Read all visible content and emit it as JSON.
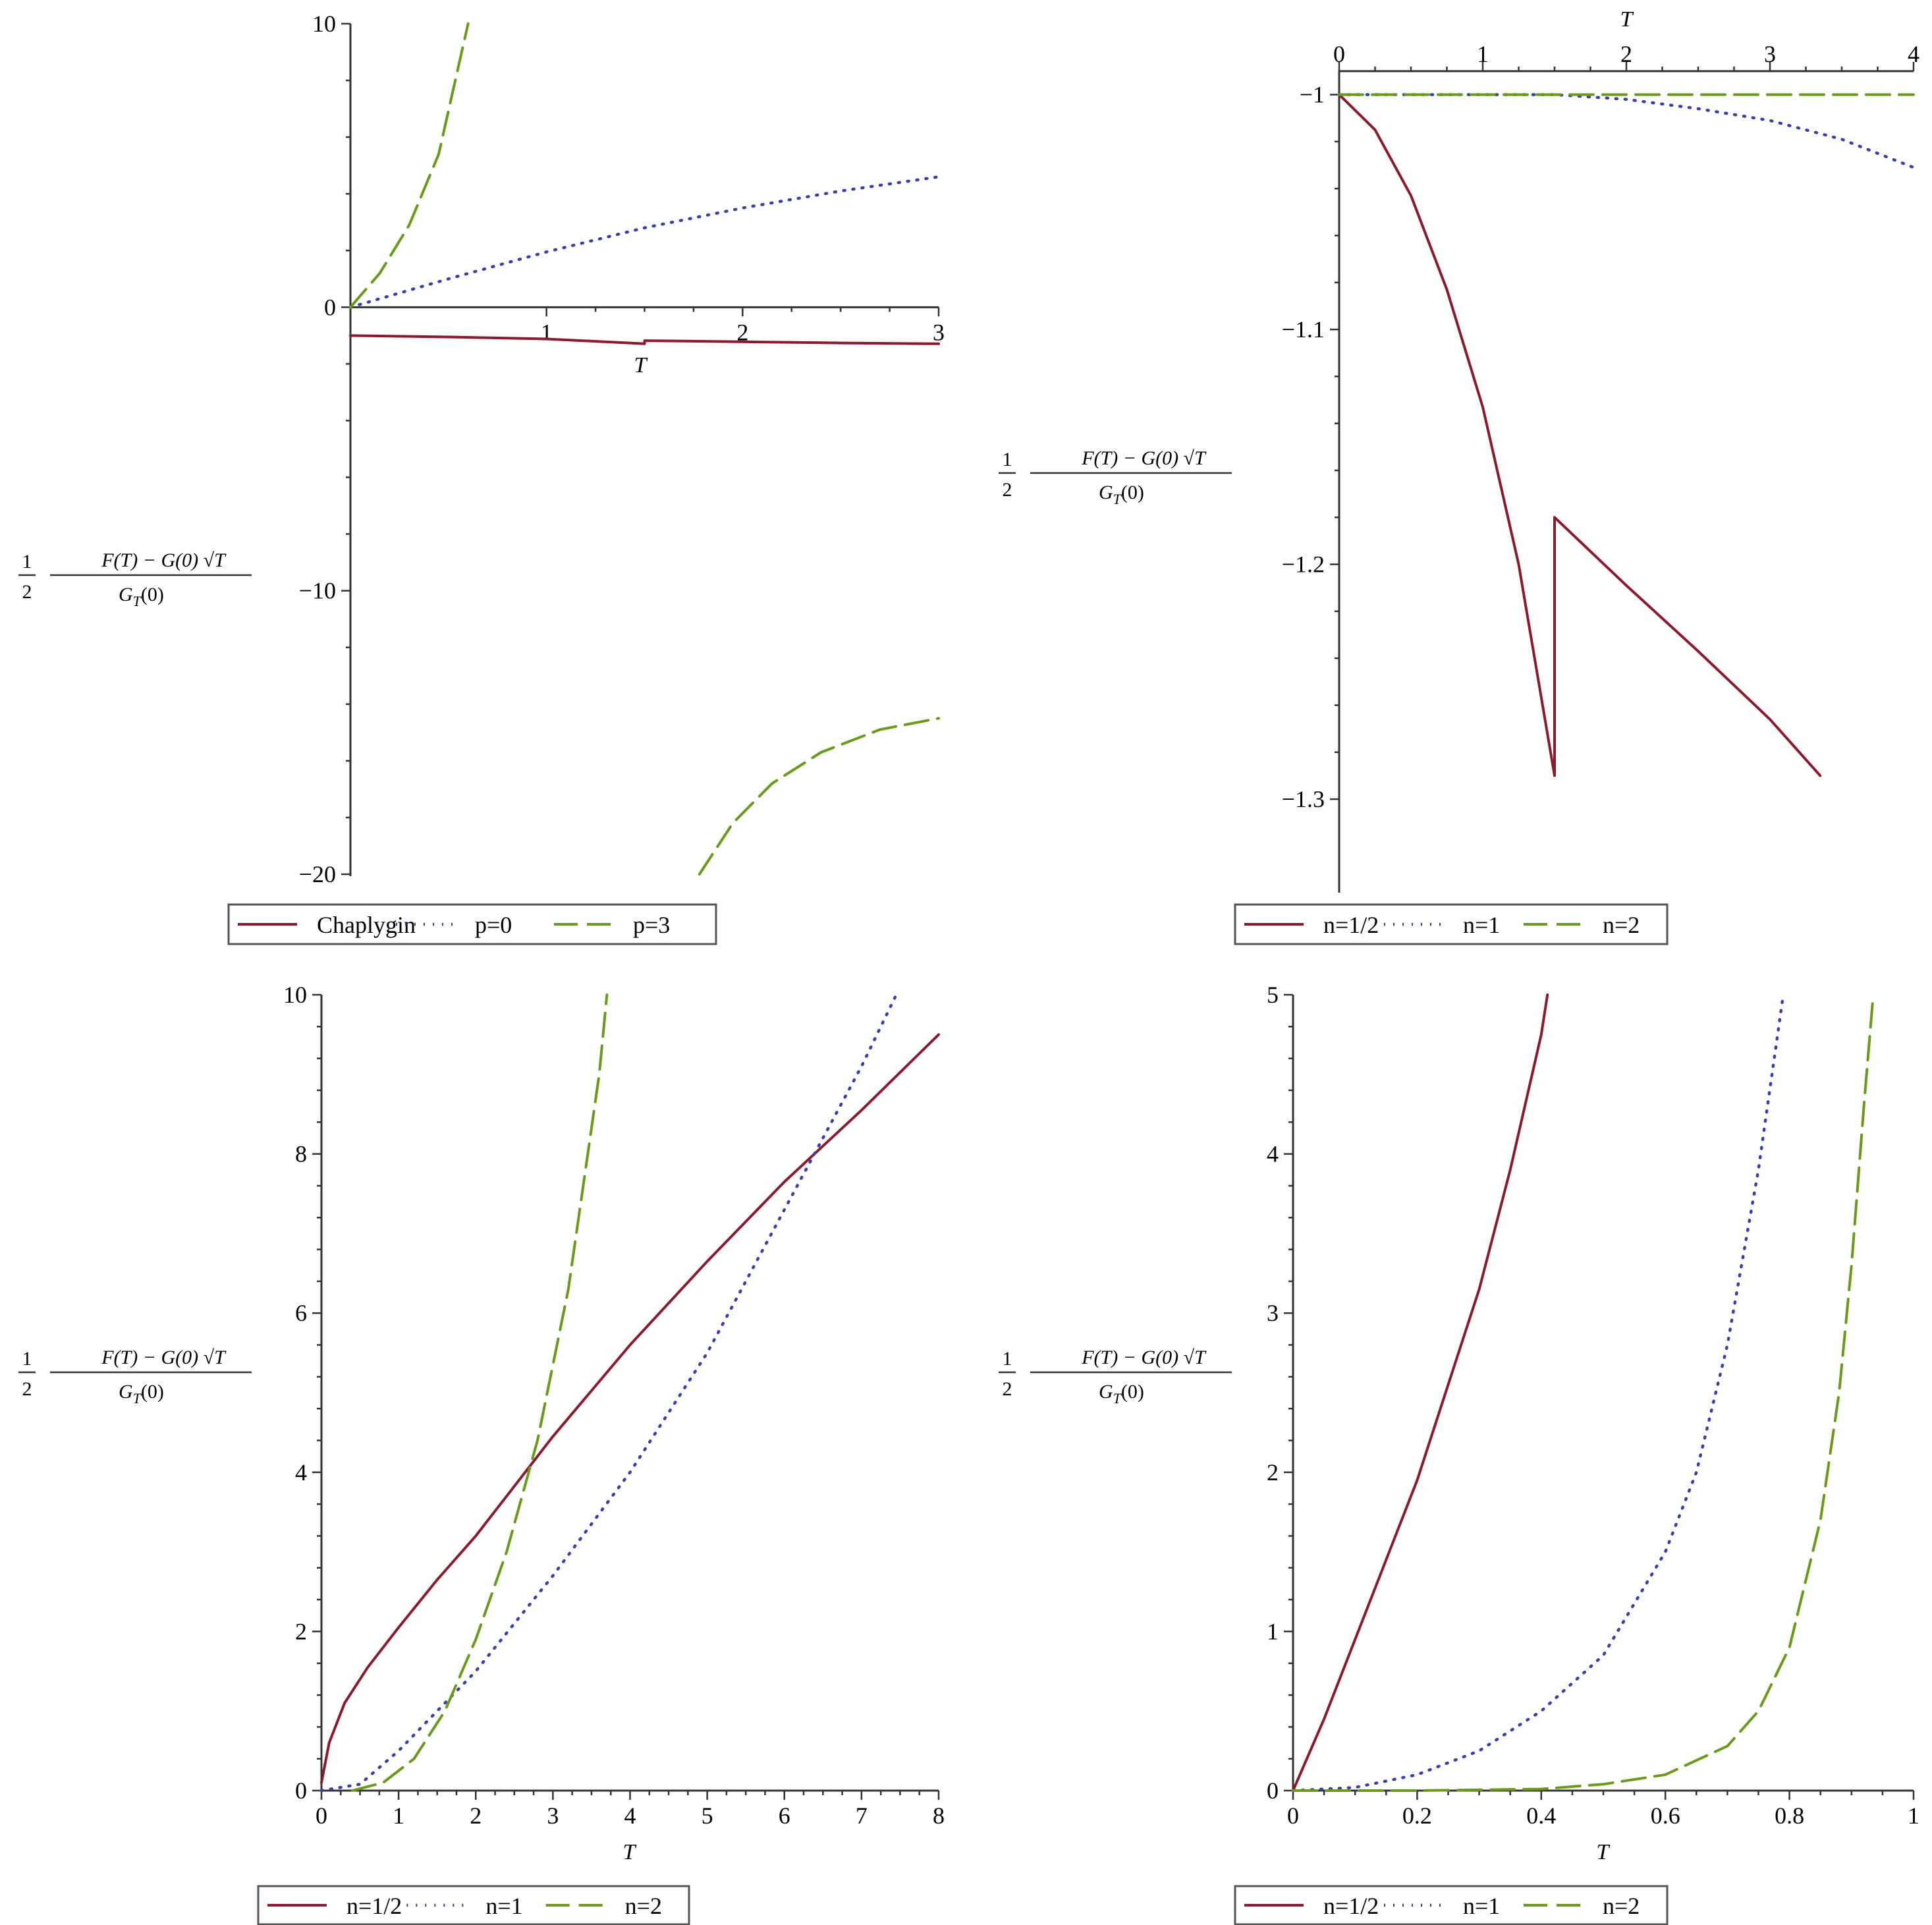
{
  "styles": {
    "n_half": {
      "color": "#8b1a2e",
      "dash": "none",
      "width": 4
    },
    "n_one": {
      "color": "#3a3fa8",
      "dash": "2,12",
      "width": 4.5
    },
    "n_two": {
      "color": "#6a9a1a",
      "dash": "36,14",
      "width": 4
    }
  },
  "ylabel": {
    "half": "1",
    "two": "2",
    "numerator": "F(T) − G(0) √T",
    "denominator_main": "G",
    "denominator_sub": "T",
    "denominator_tail": "(0)"
  },
  "chart_data": [
    {
      "type": "line",
      "panel": "top-left",
      "xlabel": "T",
      "xlim": [
        0,
        3
      ],
      "ylim": [
        -20,
        10
      ],
      "xticks": [
        "1",
        "2",
        "3"
      ],
      "yticks": [
        "10",
        "0",
        "−10",
        "−20"
      ],
      "legend": [
        "Chaplygin",
        "p=0",
        "p=3"
      ],
      "series": [
        {
          "name": "Chaplygin",
          "style": "n_half",
          "x": [
            0,
            0.5,
            1.0,
            1.5,
            1.5,
            2.0,
            2.5,
            3.0
          ],
          "y": [
            -1.0,
            -1.05,
            -1.12,
            -1.29,
            -1.18,
            -1.22,
            -1.26,
            -1.29
          ]
        },
        {
          "name": "p=0",
          "style": "n_one",
          "x": [
            0,
            0.5,
            1.0,
            1.5,
            2.0,
            2.5,
            3.0
          ],
          "y": [
            0,
            1.0,
            1.95,
            2.8,
            3.5,
            4.1,
            4.6
          ]
        },
        {
          "name": "p=3",
          "style": "n_two",
          "x": [
            0,
            0.15,
            0.3,
            0.45,
            0.6
          ],
          "y": [
            0,
            1.2,
            2.9,
            5.4,
            10.0
          ]
        },
        {
          "name": "p=3",
          "style": "n_two",
          "x": [
            1.78,
            1.95,
            2.15,
            2.4,
            2.7,
            3.0
          ],
          "y": [
            -20.0,
            -18.2,
            -16.8,
            -15.7,
            -14.9,
            -14.5
          ]
        }
      ]
    },
    {
      "type": "line",
      "panel": "top-right",
      "xlabel": "T",
      "xlim": [
        0,
        4
      ],
      "ylim": [
        -1.33,
        -0.99
      ],
      "xticks": [
        "0",
        "1",
        "2",
        "3",
        "4"
      ],
      "yticks": [
        "−1",
        "−1.1",
        "−1.2",
        "−1.3"
      ],
      "legend": [
        "n=1/2",
        "n=1",
        "n=2"
      ],
      "series": [
        {
          "name": "n=1/2",
          "style": "n_half",
          "x": [
            0,
            0.25,
            0.5,
            0.75,
            1.0,
            1.25,
            1.5,
            1.5,
            2.0,
            2.5,
            3.0,
            3.35
          ],
          "y": [
            -1.0,
            -1.015,
            -1.043,
            -1.083,
            -1.133,
            -1.2,
            -1.29,
            -1.18,
            -1.209,
            -1.237,
            -1.266,
            -1.29
          ]
        },
        {
          "name": "n=1",
          "style": "n_one",
          "x": [
            0,
            0.5,
            1.0,
            1.5,
            2.0,
            2.5,
            3.0,
            3.5,
            4.0
          ],
          "y": [
            -1.0,
            -1.0,
            -1.0,
            -1.0,
            -1.002,
            -1.006,
            -1.011,
            -1.019,
            -1.031
          ]
        },
        {
          "name": "n=2",
          "style": "n_two",
          "x": [
            0,
            4.0
          ],
          "y": [
            -1.0,
            -1.0
          ]
        }
      ]
    },
    {
      "type": "line",
      "panel": "bottom-left",
      "xlabel": "T",
      "xlim": [
        0,
        8
      ],
      "ylim": [
        0,
        10
      ],
      "xticks": [
        "0",
        "1",
        "2",
        "3",
        "4",
        "5",
        "6",
        "7",
        "8"
      ],
      "yticks": [
        "0",
        "2",
        "4",
        "6",
        "8",
        "10"
      ],
      "legend": [
        "n=1/2",
        "n=1",
        "n=2"
      ],
      "series": [
        {
          "name": "n=1/2",
          "style": "n_half",
          "x": [
            0,
            0.1,
            0.3,
            0.6,
            1.0,
            1.5,
            2.0,
            3.0,
            4.0,
            5.0,
            6.0,
            7.0,
            8.0
          ],
          "y": [
            0.1,
            0.6,
            1.1,
            1.55,
            2.05,
            2.65,
            3.2,
            4.45,
            5.6,
            6.65,
            7.65,
            8.55,
            9.5
          ]
        },
        {
          "name": "n=1",
          "style": "n_one",
          "x": [
            0,
            0.5,
            1.0,
            2.0,
            3.0,
            4.0,
            5.0,
            6.0,
            7.0,
            7.45
          ],
          "y": [
            0,
            0.08,
            0.5,
            1.5,
            2.7,
            4.0,
            5.5,
            7.3,
            9.1,
            10.0
          ]
        },
        {
          "name": "n=2",
          "style": "n_two",
          "x": [
            0.4,
            0.8,
            1.2,
            1.6,
            2.0,
            2.4,
            2.8,
            3.2,
            3.6,
            3.7
          ],
          "y": [
            0,
            0.1,
            0.4,
            1.0,
            1.9,
            3.0,
            4.4,
            6.3,
            9.0,
            10.0
          ]
        }
      ]
    },
    {
      "type": "line",
      "panel": "bottom-right",
      "xlabel": "T",
      "xlim": [
        0,
        1
      ],
      "ylim": [
        0,
        5
      ],
      "xticks": [
        "0",
        "0.2",
        "0.4",
        "0.6",
        "0.8",
        "1"
      ],
      "yticks": [
        "0",
        "1",
        "2",
        "3",
        "4",
        "5"
      ],
      "legend": [
        "n=1/2",
        "n=1",
        "n=2"
      ],
      "series": [
        {
          "name": "n=1/2",
          "style": "n_half",
          "x": [
            0,
            0.05,
            0.1,
            0.15,
            0.2,
            0.25,
            0.3,
            0.35,
            0.4,
            0.41
          ],
          "y": [
            0,
            0.45,
            0.95,
            1.45,
            1.95,
            2.55,
            3.15,
            3.9,
            4.75,
            5.0
          ]
        },
        {
          "name": "n=1",
          "style": "n_one",
          "x": [
            0,
            0.1,
            0.2,
            0.3,
            0.4,
            0.5,
            0.6,
            0.65,
            0.7,
            0.75,
            0.79
          ],
          "y": [
            0,
            0.02,
            0.1,
            0.25,
            0.5,
            0.85,
            1.5,
            2.0,
            2.8,
            3.9,
            5.0
          ]
        },
        {
          "name": "n=2",
          "style": "n_two",
          "x": [
            0,
            0.2,
            0.4,
            0.5,
            0.6,
            0.7,
            0.75,
            0.8,
            0.85,
            0.88,
            0.9,
            0.92,
            0.935
          ],
          "y": [
            0,
            0.0,
            0.01,
            0.04,
            0.1,
            0.28,
            0.5,
            0.9,
            1.7,
            2.5,
            3.3,
            4.3,
            5.0
          ]
        }
      ]
    }
  ]
}
